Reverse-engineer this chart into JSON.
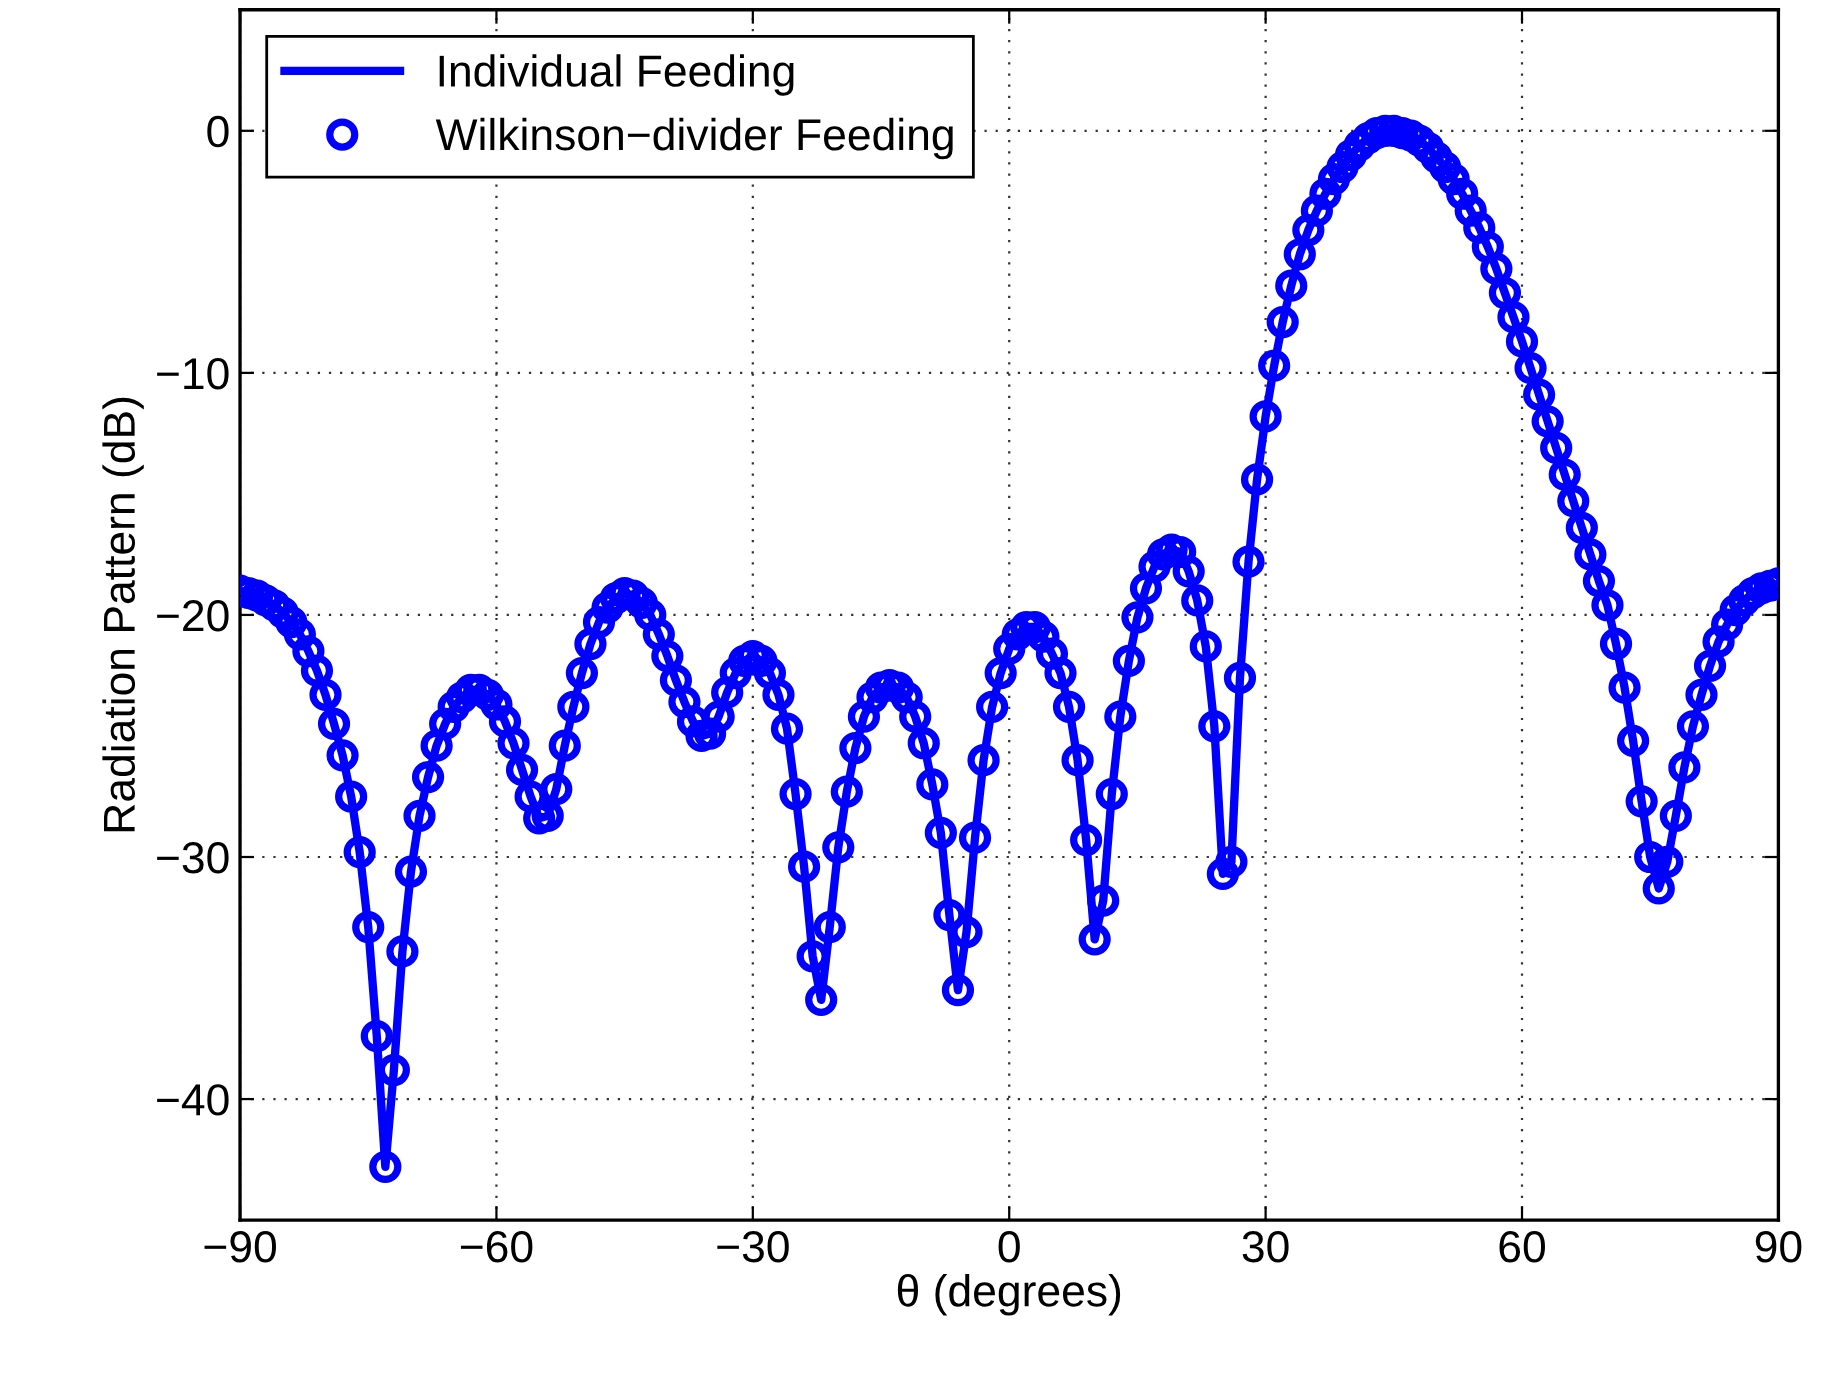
{
  "chart_data": {
    "type": "line",
    "xlabel": "θ (degrees)",
    "ylabel": "Radiation Pattern (dB)",
    "x": [
      -90,
      -89,
      -88,
      -87,
      -86,
      -85,
      -84,
      -83,
      -82,
      -81,
      -80,
      -79,
      -78,
      -77,
      -76,
      -75,
      -74,
      -73,
      -72,
      -71,
      -70,
      -69,
      -68,
      -67,
      -66,
      -65,
      -64,
      -63,
      -62,
      -61,
      -60,
      -59,
      -58,
      -57,
      -56,
      -55,
      -54,
      -53,
      -52,
      -51,
      -50,
      -49,
      -48,
      -47,
      -46,
      -45,
      -44,
      -43,
      -42,
      -41,
      -40,
      -39,
      -38,
      -37,
      -36,
      -35,
      -34,
      -33,
      -32,
      -31,
      -30,
      -29,
      -28,
      -27,
      -26,
      -25,
      -24,
      -23,
      -22,
      -21,
      -20,
      -19,
      -18,
      -17,
      -16,
      -15,
      -14,
      -13,
      -12,
      -11,
      -10,
      -9,
      -8,
      -7,
      -6,
      -5,
      -4,
      -3,
      -2,
      -1,
      0,
      1,
      2,
      3,
      4,
      5,
      6,
      7,
      8,
      9,
      10,
      11,
      12,
      13,
      14,
      15,
      16,
      17,
      18,
      19,
      20,
      21,
      22,
      23,
      24,
      25,
      26,
      27,
      28,
      29,
      30,
      31,
      32,
      33,
      34,
      35,
      36,
      37,
      38,
      39,
      40,
      41,
      42,
      43,
      44,
      45,
      46,
      47,
      48,
      49,
      50,
      51,
      52,
      53,
      54,
      55,
      56,
      57,
      58,
      59,
      60,
      61,
      62,
      63,
      64,
      65,
      66,
      67,
      68,
      69,
      70,
      71,
      72,
      73,
      74,
      75,
      76,
      77,
      78,
      79,
      80,
      81,
      82,
      83,
      84,
      85,
      86,
      87,
      88,
      89,
      90
    ],
    "series": [
      {
        "name": "Individual Feeding",
        "marker": "none",
        "line_style": "solid",
        "color": "#0000ff",
        "values": [
          -19.0,
          -19.1,
          -19.2,
          -19.4,
          -19.6,
          -19.9,
          -20.3,
          -20.8,
          -21.5,
          -22.3,
          -23.3,
          -24.5,
          -25.8,
          -27.5,
          -29.8,
          -32.9,
          -37.4,
          -42.8,
          -38.8,
          -33.9,
          -30.6,
          -28.3,
          -26.7,
          -25.4,
          -24.5,
          -23.8,
          -23.4,
          -23.1,
          -23.1,
          -23.3,
          -23.7,
          -24.4,
          -25.3,
          -26.4,
          -27.5,
          -28.4,
          -28.3,
          -27.2,
          -25.4,
          -23.8,
          -22.4,
          -21.2,
          -20.3,
          -19.7,
          -19.3,
          -19.1,
          -19.2,
          -19.5,
          -20.0,
          -20.8,
          -21.7,
          -22.7,
          -23.6,
          -24.4,
          -25.0,
          -24.9,
          -24.2,
          -23.2,
          -22.4,
          -21.9,
          -21.7,
          -21.9,
          -22.4,
          -23.3,
          -24.7,
          -27.4,
          -30.4,
          -34.1,
          -35.9,
          -32.9,
          -29.6,
          -27.3,
          -25.5,
          -24.2,
          -23.4,
          -23.0,
          -22.9,
          -23.0,
          -23.4,
          -24.2,
          -25.3,
          -27.0,
          -29.0,
          -32.4,
          -35.5,
          -33.1,
          -29.2,
          -26.0,
          -23.8,
          -22.4,
          -21.4,
          -20.8,
          -20.5,
          -20.5,
          -20.9,
          -21.6,
          -22.4,
          -23.8,
          -26.0,
          -29.3,
          -33.4,
          -31.8,
          -27.4,
          -24.2,
          -21.9,
          -20.1,
          -18.9,
          -18.0,
          -17.5,
          -17.3,
          -17.4,
          -18.2,
          -19.4,
          -21.3,
          -24.6,
          -30.7,
          -30.2,
          -22.6,
          -17.8,
          -14.4,
          -11.8,
          -9.7,
          -7.9,
          -6.4,
          -5.1,
          -4.1,
          -3.3,
          -2.6,
          -2.0,
          -1.5,
          -1.0,
          -0.6,
          -0.3,
          -0.1,
          0.0,
          0.0,
          -0.1,
          -0.2,
          -0.4,
          -0.7,
          -1.1,
          -1.5,
          -2.0,
          -2.6,
          -3.3,
          -4.0,
          -4.8,
          -5.7,
          -6.7,
          -7.7,
          -8.7,
          -9.8,
          -10.9,
          -12.0,
          -13.1,
          -14.2,
          -15.3,
          -16.4,
          -17.5,
          -18.6,
          -19.6,
          -21.2,
          -23.0,
          -25.2,
          -27.7,
          -30.0,
          -31.3,
          -30.2,
          -28.3,
          -26.3,
          -24.6,
          -23.3,
          -22.1,
          -21.1,
          -20.4,
          -19.8,
          -19.4,
          -19.1,
          -18.9,
          -18.8,
          -18.7
        ]
      },
      {
        "name": "Wilkinson−divider Feeding",
        "type": "scatter",
        "marker": "circle",
        "color": "#0000ff",
        "values": [
          -19.0,
          -19.1,
          -19.2,
          -19.4,
          -19.6,
          -19.9,
          -20.3,
          -20.8,
          -21.5,
          -22.3,
          -23.3,
          -24.5,
          -25.8,
          -27.5,
          -29.8,
          -32.9,
          -37.4,
          -42.8,
          -38.8,
          -33.9,
          -30.6,
          -28.3,
          -26.7,
          -25.4,
          -24.5,
          -23.8,
          -23.4,
          -23.1,
          -23.1,
          -23.3,
          -23.7,
          -24.4,
          -25.3,
          -26.4,
          -27.5,
          -28.4,
          -28.3,
          -27.2,
          -25.4,
          -23.8,
          -22.4,
          -21.2,
          -20.3,
          -19.7,
          -19.3,
          -19.1,
          -19.2,
          -19.5,
          -20.0,
          -20.8,
          -21.7,
          -22.7,
          -23.6,
          -24.4,
          -25.0,
          -24.9,
          -24.2,
          -23.2,
          -22.4,
          -21.9,
          -21.7,
          -21.9,
          -22.4,
          -23.3,
          -24.7,
          -27.4,
          -30.4,
          -34.1,
          -35.9,
          -32.9,
          -29.6,
          -27.3,
          -25.5,
          -24.2,
          -23.4,
          -23.0,
          -22.9,
          -23.0,
          -23.4,
          -24.2,
          -25.3,
          -27.0,
          -29.0,
          -32.4,
          -35.5,
          -33.1,
          -29.2,
          -26.0,
          -23.8,
          -22.4,
          -21.4,
          -20.8,
          -20.5,
          -20.5,
          -20.9,
          -21.6,
          -22.4,
          -23.8,
          -26.0,
          -29.3,
          -33.4,
          -31.8,
          -27.4,
          -24.2,
          -21.9,
          -20.1,
          -18.9,
          -18.0,
          -17.5,
          -17.3,
          -17.4,
          -18.2,
          -19.4,
          -21.3,
          -24.6,
          -30.7,
          -30.2,
          -22.6,
          -17.8,
          -14.4,
          -11.8,
          -9.7,
          -7.9,
          -6.4,
          -5.1,
          -4.1,
          -3.3,
          -2.6,
          -2.0,
          -1.5,
          -1.0,
          -0.6,
          -0.3,
          -0.1,
          0.0,
          0.0,
          -0.1,
          -0.2,
          -0.4,
          -0.7,
          -1.1,
          -1.5,
          -2.0,
          -2.6,
          -3.3,
          -4.0,
          -4.8,
          -5.7,
          -6.7,
          -7.7,
          -8.7,
          -9.8,
          -10.9,
          -12.0,
          -13.1,
          -14.2,
          -15.3,
          -16.4,
          -17.5,
          -18.6,
          -19.6,
          -21.2,
          -23.0,
          -25.2,
          -27.7,
          -30.0,
          -31.3,
          -30.2,
          -28.3,
          -26.3,
          -24.6,
          -23.3,
          -22.1,
          -21.1,
          -20.4,
          -19.8,
          -19.4,
          -19.1,
          -18.9,
          -18.8,
          -18.7
        ]
      }
    ],
    "xlim": [
      -90,
      90
    ],
    "xticks": [
      {
        "value": -90,
        "label": "−90"
      },
      {
        "value": -60,
        "label": "−60"
      },
      {
        "value": -30,
        "label": "−30"
      },
      0,
      30,
      60,
      90
    ],
    "ylim": [
      -45,
      5
    ],
    "yticks": [
      {
        "value": -40,
        "label": "−40"
      },
      {
        "value": -30,
        "label": "−30"
      },
      {
        "value": -20,
        "label": "−20"
      },
      {
        "value": -10,
        "label": "−10"
      },
      0
    ],
    "grid": true,
    "legend": "top left"
  }
}
